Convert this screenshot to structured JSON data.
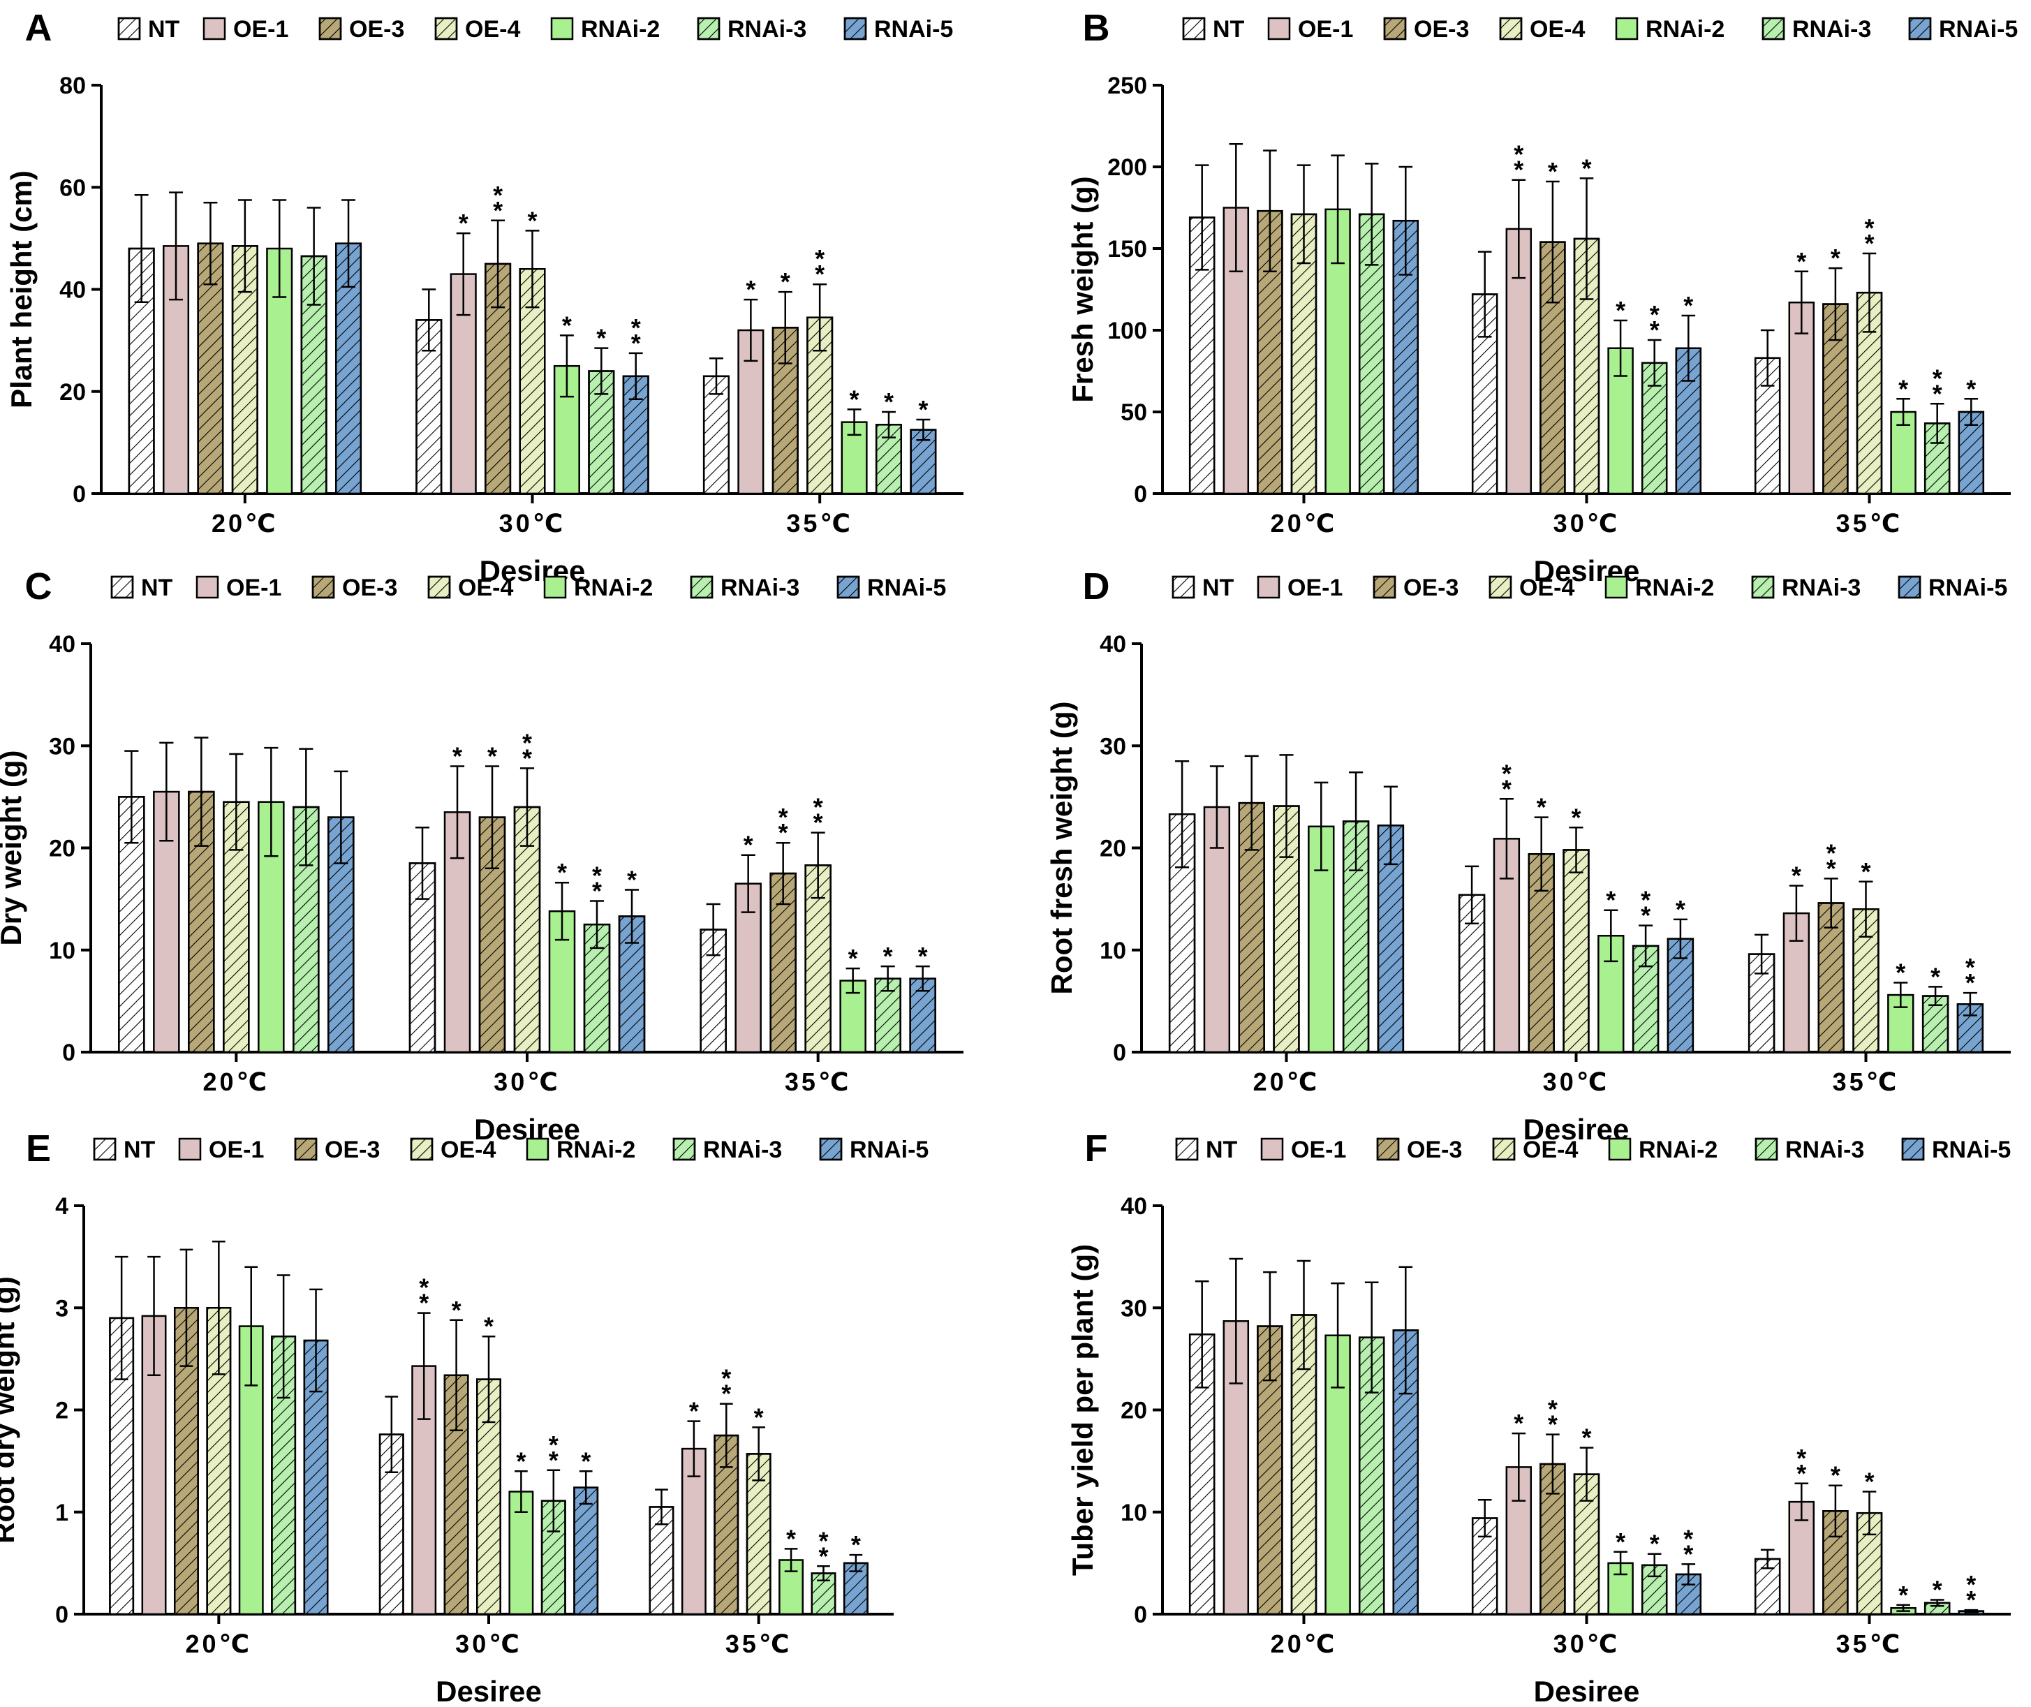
{
  "figure": {
    "colors": {
      "NT": "#ffffff",
      "OE-1": "#dcc2c2",
      "OE-3": "#b8a878",
      "OE-4": "#e8efc2",
      "RNAi-2": "#a8f090",
      "RNAi-3": "#b8f0b0",
      "RNAi-5": "#78a4d2"
    },
    "hatched": [
      "NT",
      "OE-3",
      "OE-4",
      "RNAi-3",
      "RNAi-5"
    ]
  },
  "chart_data": [
    {
      "type": "bar",
      "panel_label": "A",
      "ylabel": "Plant height (cm)",
      "xlabel": "Desiree",
      "ylim": [
        0,
        80
      ],
      "yticks": [
        0,
        20,
        40,
        60,
        80
      ],
      "categories": [
        "20℃",
        "30℃",
        "35℃"
      ],
      "legend": [
        "NT",
        "OE-1",
        "OE-3",
        "OE-4",
        "RNAi-2",
        "RNAi-3",
        "RNAi-5"
      ],
      "series": [
        {
          "name": "NT",
          "values": [
            48,
            34,
            23
          ],
          "errors": [
            10.5,
            6,
            3.5
          ],
          "stars": [
            "",
            "",
            ""
          ]
        },
        {
          "name": "OE-1",
          "values": [
            48.5,
            43,
            32
          ],
          "errors": [
            10.5,
            8,
            6
          ],
          "stars": [
            "",
            "*",
            "*"
          ]
        },
        {
          "name": "OE-3",
          "values": [
            49,
            45,
            32.5
          ],
          "errors": [
            8,
            8.5,
            7
          ],
          "stars": [
            "",
            "**",
            "*"
          ]
        },
        {
          "name": "OE-4",
          "values": [
            48.5,
            44,
            34.5
          ],
          "errors": [
            9,
            7.5,
            6.5
          ],
          "stars": [
            "",
            "*",
            "**"
          ]
        },
        {
          "name": "RNAi-2",
          "values": [
            48,
            25,
            14
          ],
          "errors": [
            9.5,
            6,
            2.5
          ],
          "stars": [
            "",
            "*",
            "*"
          ]
        },
        {
          "name": "RNAi-3",
          "values": [
            46.5,
            24,
            13.5
          ],
          "errors": [
            9.5,
            4.5,
            2.5
          ],
          "stars": [
            "",
            "*",
            "*"
          ]
        },
        {
          "name": "RNAi-5",
          "values": [
            49,
            23,
            12.5
          ],
          "errors": [
            8.5,
            4.5,
            2
          ],
          "stars": [
            "",
            "**",
            "*"
          ]
        }
      ]
    },
    {
      "type": "bar",
      "panel_label": "B",
      "ylabel": "Fresh weight (g)",
      "xlabel": "Desiree",
      "ylim": [
        0,
        250
      ],
      "yticks": [
        0,
        50,
        100,
        150,
        200,
        250
      ],
      "categories": [
        "20℃",
        "30℃",
        "35℃"
      ],
      "legend": [
        "NT",
        "OE-1",
        "OE-3",
        "OE-4",
        "RNAi-2",
        "RNAi-3",
        "RNAi-5"
      ],
      "series": [
        {
          "name": "NT",
          "values": [
            169,
            122,
            83
          ],
          "errors": [
            32,
            26,
            17
          ],
          "stars": [
            "",
            "",
            ""
          ]
        },
        {
          "name": "OE-1",
          "values": [
            175,
            162,
            117
          ],
          "errors": [
            39,
            30,
            19
          ],
          "stars": [
            "",
            "**",
            "*"
          ]
        },
        {
          "name": "OE-3",
          "values": [
            173,
            154,
            116
          ],
          "errors": [
            37,
            37,
            22
          ],
          "stars": [
            "",
            "*",
            "*"
          ]
        },
        {
          "name": "OE-4",
          "values": [
            171,
            156,
            123
          ],
          "errors": [
            30,
            37,
            24
          ],
          "stars": [
            "",
            "*",
            "**"
          ]
        },
        {
          "name": "RNAi-2",
          "values": [
            174,
            89,
            50
          ],
          "errors": [
            33,
            17,
            8
          ],
          "stars": [
            "",
            "*",
            "*"
          ]
        },
        {
          "name": "RNAi-3",
          "values": [
            171,
            80,
            43
          ],
          "errors": [
            31,
            14,
            12
          ],
          "stars": [
            "",
            "**",
            "**"
          ]
        },
        {
          "name": "RNAi-5",
          "values": [
            167,
            89,
            50
          ],
          "errors": [
            33,
            20,
            8
          ],
          "stars": [
            "",
            "*",
            "*"
          ]
        }
      ]
    },
    {
      "type": "bar",
      "panel_label": "C",
      "ylabel": "Dry weight (g)",
      "xlabel": "Desiree",
      "ylim": [
        0,
        40
      ],
      "yticks": [
        0,
        10,
        20,
        30,
        40
      ],
      "categories": [
        "20℃",
        "30℃",
        "35℃"
      ],
      "legend": [
        "NT",
        "OE-1",
        "OE-3",
        "OE-4",
        "RNAi-2",
        "RNAi-3",
        "RNAi-5"
      ],
      "series": [
        {
          "name": "NT",
          "values": [
            25,
            18.5,
            12
          ],
          "errors": [
            4.5,
            3.5,
            2.5
          ],
          "stars": [
            "",
            "",
            ""
          ]
        },
        {
          "name": "OE-1",
          "values": [
            25.5,
            23.5,
            16.5
          ],
          "errors": [
            4.8,
            4.5,
            2.8
          ],
          "stars": [
            "",
            "*",
            "*"
          ]
        },
        {
          "name": "OE-3",
          "values": [
            25.5,
            23,
            17.5
          ],
          "errors": [
            5.3,
            5,
            3
          ],
          "stars": [
            "",
            "*",
            "**"
          ]
        },
        {
          "name": "OE-4",
          "values": [
            24.5,
            24,
            18.3
          ],
          "errors": [
            4.7,
            3.8,
            3.2
          ],
          "stars": [
            "",
            "**",
            "**"
          ]
        },
        {
          "name": "RNAi-2",
          "values": [
            24.5,
            13.8,
            7
          ],
          "errors": [
            5.3,
            2.8,
            1.2
          ],
          "stars": [
            "",
            "*",
            "*"
          ]
        },
        {
          "name": "RNAi-3",
          "values": [
            24,
            12.5,
            7.2
          ],
          "errors": [
            5.7,
            2.3,
            1.2
          ],
          "stars": [
            "",
            "**",
            "*"
          ]
        },
        {
          "name": "RNAi-5",
          "values": [
            23,
            13.3,
            7.2
          ],
          "errors": [
            4.5,
            2.6,
            1.2
          ],
          "stars": [
            "",
            "*",
            "*"
          ]
        }
      ]
    },
    {
      "type": "bar",
      "panel_label": "D",
      "ylabel": "Root fresh weight (g)",
      "xlabel": "Desiree",
      "ylim": [
        0,
        40
      ],
      "yticks": [
        0,
        10,
        20,
        30,
        40
      ],
      "categories": [
        "20℃",
        "30℃",
        "35℃"
      ],
      "legend": [
        "NT",
        "OE-1",
        "OE-3",
        "OE-4",
        "RNAi-2",
        "RNAi-3",
        "RNAi-5"
      ],
      "series": [
        {
          "name": "NT",
          "values": [
            23.3,
            15.4,
            9.6
          ],
          "errors": [
            5.2,
            2.8,
            1.9
          ],
          "stars": [
            "",
            "",
            ""
          ]
        },
        {
          "name": "OE-1",
          "values": [
            24,
            20.9,
            13.6
          ],
          "errors": [
            4,
            3.9,
            2.7
          ],
          "stars": [
            "",
            "**",
            "*"
          ]
        },
        {
          "name": "OE-3",
          "values": [
            24.4,
            19.4,
            14.6
          ],
          "errors": [
            4.6,
            3.6,
            2.4
          ],
          "stars": [
            "",
            "*",
            "**"
          ]
        },
        {
          "name": "OE-4",
          "values": [
            24.1,
            19.8,
            14
          ],
          "errors": [
            5,
            2.2,
            2.7
          ],
          "stars": [
            "",
            "*",
            "*"
          ]
        },
        {
          "name": "RNAi-2",
          "values": [
            22.1,
            11.4,
            5.6
          ],
          "errors": [
            4.3,
            2.5,
            1.2
          ],
          "stars": [
            "",
            "*",
            "*"
          ]
        },
        {
          "name": "RNAi-3",
          "values": [
            22.6,
            10.4,
            5.5
          ],
          "errors": [
            4.8,
            2,
            0.9
          ],
          "stars": [
            "",
            "**",
            "*"
          ]
        },
        {
          "name": "RNAi-5",
          "values": [
            22.2,
            11.1,
            4.7
          ],
          "errors": [
            3.8,
            1.9,
            1.1
          ],
          "stars": [
            "",
            "*",
            "**"
          ]
        }
      ]
    },
    {
      "type": "bar",
      "panel_label": "E",
      "ylabel": "Root dry weight (g)",
      "xlabel": "Desiree",
      "ylim": [
        0,
        4
      ],
      "yticks": [
        0,
        1,
        2,
        3,
        4
      ],
      "categories": [
        "20℃",
        "30℃",
        "35℃"
      ],
      "legend": [
        "NT",
        "OE-1",
        "OE-3",
        "OE-4",
        "RNAi-2",
        "RNAi-3",
        "RNAi-5"
      ],
      "series": [
        {
          "name": "NT",
          "values": [
            2.9,
            1.76,
            1.05
          ],
          "errors": [
            0.6,
            0.37,
            0.17
          ],
          "stars": [
            "",
            "",
            ""
          ]
        },
        {
          "name": "OE-1",
          "values": [
            2.92,
            2.43,
            1.62
          ],
          "errors": [
            0.58,
            0.52,
            0.27
          ],
          "stars": [
            "",
            "**",
            "*"
          ]
        },
        {
          "name": "OE-3",
          "values": [
            3,
            2.34,
            1.75
          ],
          "errors": [
            0.57,
            0.54,
            0.31
          ],
          "stars": [
            "",
            "*",
            "**"
          ]
        },
        {
          "name": "OE-4",
          "values": [
            3,
            2.3,
            1.57
          ],
          "errors": [
            0.65,
            0.42,
            0.26
          ],
          "stars": [
            "",
            "*",
            "*"
          ]
        },
        {
          "name": "RNAi-2",
          "values": [
            2.82,
            1.2,
            0.53
          ],
          "errors": [
            0.58,
            0.2,
            0.11
          ],
          "stars": [
            "",
            "*",
            "*"
          ]
        },
        {
          "name": "RNAi-3",
          "values": [
            2.72,
            1.11,
            0.4
          ],
          "errors": [
            0.6,
            0.3,
            0.07
          ],
          "stars": [
            "",
            "**",
            "**"
          ]
        },
        {
          "name": "RNAi-5",
          "values": [
            2.68,
            1.24,
            0.5
          ],
          "errors": [
            0.5,
            0.16,
            0.08
          ],
          "stars": [
            "",
            "*",
            "*"
          ]
        }
      ]
    },
    {
      "type": "bar",
      "panel_label": "F",
      "ylabel": "Tuber yield per plant (g)",
      "xlabel": "Desiree",
      "ylim": [
        0,
        40
      ],
      "yticks": [
        0,
        10,
        20,
        30,
        40
      ],
      "categories": [
        "20℃",
        "30℃",
        "35℃"
      ],
      "legend": [
        "NT",
        "OE-1",
        "OE-3",
        "OE-4",
        "RNAi-2",
        "RNAi-3",
        "RNAi-5"
      ],
      "series": [
        {
          "name": "NT",
          "values": [
            27.4,
            9.4,
            5.4
          ],
          "errors": [
            5.2,
            1.8,
            0.9
          ],
          "stars": [
            "",
            "",
            ""
          ]
        },
        {
          "name": "OE-1",
          "values": [
            28.7,
            14.4,
            11
          ],
          "errors": [
            6.1,
            3.3,
            1.8
          ],
          "stars": [
            "",
            "*",
            "**"
          ]
        },
        {
          "name": "OE-3",
          "values": [
            28.2,
            14.7,
            10.1
          ],
          "errors": [
            5.3,
            2.9,
            2.5
          ],
          "stars": [
            "",
            "**",
            "*"
          ]
        },
        {
          "name": "OE-4",
          "values": [
            29.3,
            13.7,
            9.9
          ],
          "errors": [
            5.3,
            2.6,
            2.1
          ],
          "stars": [
            "",
            "*",
            "*"
          ]
        },
        {
          "name": "RNAi-2",
          "values": [
            27.3,
            5,
            0.6
          ],
          "errors": [
            5.1,
            1.1,
            0.3
          ],
          "stars": [
            "",
            "*",
            "*"
          ]
        },
        {
          "name": "RNAi-3",
          "values": [
            27.1,
            4.8,
            1.1
          ],
          "errors": [
            5.4,
            1.1,
            0.3
          ],
          "stars": [
            "",
            "*",
            "*"
          ]
        },
        {
          "name": "RNAi-5",
          "values": [
            27.8,
            3.9,
            0.3
          ],
          "errors": [
            6.2,
            1,
            0.1
          ],
          "stars": [
            "",
            "**",
            "**"
          ]
        }
      ]
    }
  ]
}
